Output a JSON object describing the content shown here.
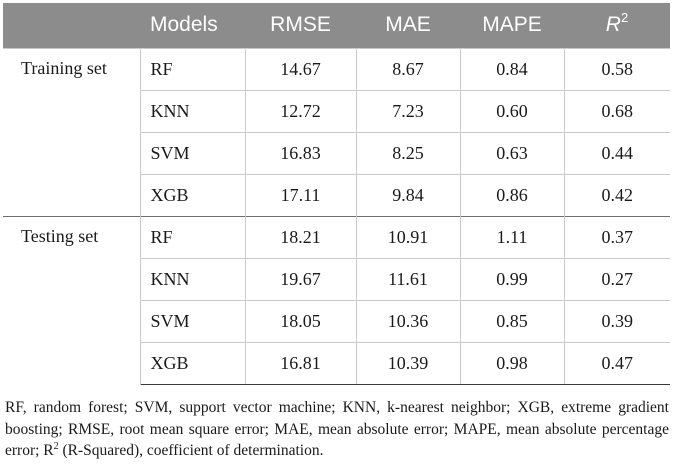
{
  "table": {
    "headers": {
      "group": "",
      "models": "Models",
      "rmse": "RMSE",
      "mae": "MAE",
      "mape": "MAPE",
      "r2_base": "R",
      "r2_sup": "2"
    },
    "groups": [
      {
        "label": "Training set",
        "rows": [
          {
            "model": "RF",
            "rmse": "14.67",
            "mae": "8.67",
            "mape": "0.84",
            "r2": "0.58"
          },
          {
            "model": "KNN",
            "rmse": "12.72",
            "mae": "7.23",
            "mape": "0.60",
            "r2": "0.68"
          },
          {
            "model": "SVM",
            "rmse": "16.83",
            "mae": "8.25",
            "mape": "0.63",
            "r2": "0.44"
          },
          {
            "model": "XGB",
            "rmse": "17.11",
            "mae": "9.84",
            "mape": "0.86",
            "r2": "0.42"
          }
        ]
      },
      {
        "label": "Testing set",
        "rows": [
          {
            "model": "RF",
            "rmse": "18.21",
            "mae": "10.91",
            "mape": "1.11",
            "r2": "0.37"
          },
          {
            "model": "KNN",
            "rmse": "19.67",
            "mae": "11.61",
            "mape": "0.99",
            "r2": "0.27"
          },
          {
            "model": "SVM",
            "rmse": "18.05",
            "mae": "10.36",
            "mape": "0.85",
            "r2": "0.39"
          },
          {
            "model": "XGB",
            "rmse": "16.81",
            "mae": "10.39",
            "mape": "0.98",
            "r2": "0.47"
          }
        ]
      }
    ]
  },
  "footnote": {
    "part1": "RF, random forest; SVM, support vector machine; KNN, k-nearest neighbor; XGB, extreme gradient boosting; RMSE, root mean square error; MAE, mean absolute error; MAPE, mean absolute percentage error; R",
    "sup": "2",
    "part2": " (R-Squared), coefficient of determination."
  }
}
